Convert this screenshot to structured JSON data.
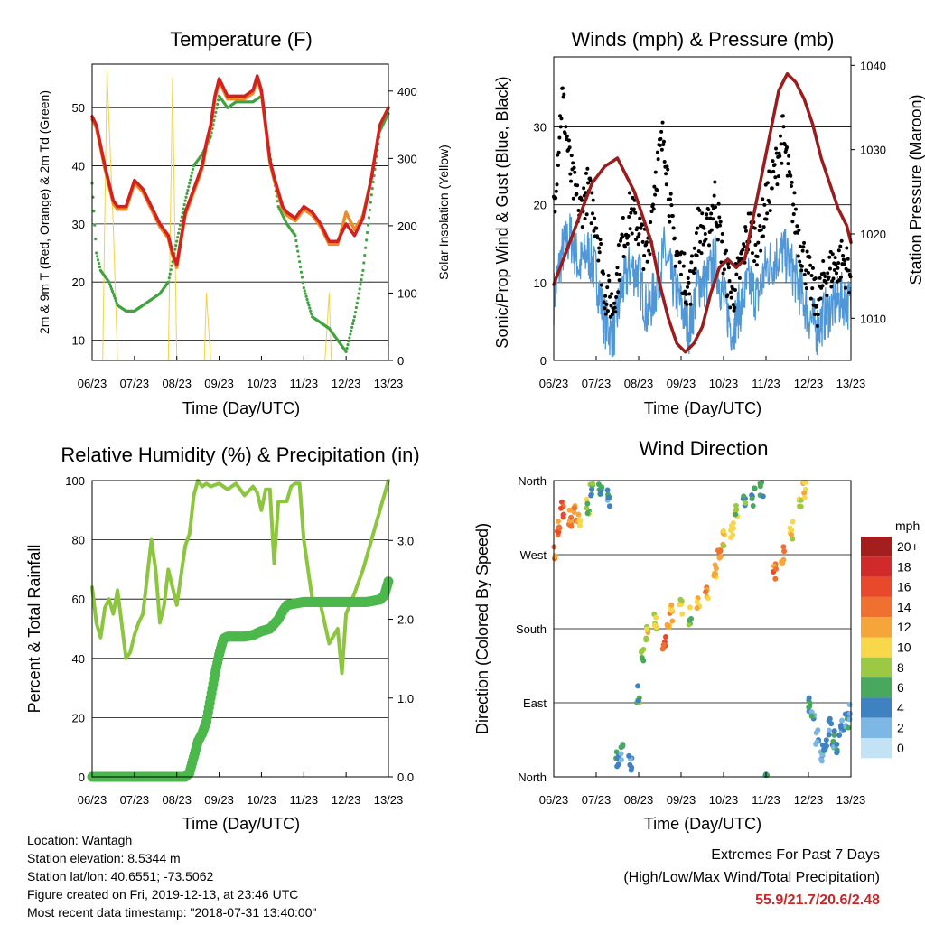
{
  "x_ticks": [
    "06/23",
    "07/23",
    "08/23",
    "09/23",
    "10/23",
    "11/23",
    "12/23",
    "13/23"
  ],
  "colors": {
    "t2m": "#d42020",
    "t9m": "#f08a24",
    "td": "#3fa33f",
    "solar": "#f5d142",
    "wind": "#4f97d6",
    "gust": "#000000",
    "pressure": "#9b1c1c",
    "rh": "#8cc63f",
    "rain": "#4cb84c"
  },
  "chart_data": [
    {
      "type": "line",
      "title": "Temperature (F)",
      "xlabel": "Time (Day/UTC)",
      "ylabel": "2m & 9m T (Red, Orange) & 2m Td (Green)",
      "ylabel_right": "Solar Insolation (Yellow)",
      "ylim": [
        6.5,
        57.5
      ],
      "yticks": [
        10,
        20,
        30,
        40,
        50
      ],
      "ylim_right": [
        0,
        440
      ],
      "yticks_right": [
        0,
        100,
        200,
        300,
        400
      ],
      "xlim": [
        6,
        13
      ],
      "grid": "horizontal",
      "series": [
        {
          "key": "t2m",
          "x": [
            6.0,
            6.1,
            6.3,
            6.5,
            6.6,
            6.8,
            7.0,
            7.2,
            7.4,
            7.6,
            7.8,
            7.9,
            8.0,
            8.2,
            8.4,
            8.6,
            8.7,
            8.8,
            8.9,
            9.0,
            9.2,
            9.4,
            9.6,
            9.8,
            9.9,
            10.0,
            10.2,
            10.3,
            10.5,
            10.6,
            10.8,
            11.0,
            11.2,
            11.4,
            11.6,
            11.8,
            12.0,
            12.2,
            12.4,
            12.6,
            12.8,
            13.0
          ],
          "y": [
            48.5,
            47,
            40,
            34,
            33,
            33,
            37.5,
            36,
            33,
            30,
            28,
            25,
            23,
            32,
            36,
            40,
            44,
            47,
            52,
            55,
            52,
            52,
            52,
            53,
            55.5,
            53,
            41,
            38,
            33,
            32,
            31,
            33,
            32,
            30,
            27,
            27,
            30,
            28,
            31,
            38,
            47,
            50
          ]
        },
        {
          "key": "t9m",
          "x": [
            6.0,
            6.1,
            6.3,
            6.5,
            6.6,
            6.8,
            7.0,
            7.2,
            7.4,
            7.6,
            7.8,
            7.9,
            8.0,
            8.2,
            8.4,
            8.6,
            8.7,
            8.8,
            8.9,
            9.0,
            9.2,
            9.4,
            9.6,
            9.8,
            9.9,
            10.0,
            10.2,
            10.3,
            10.5,
            10.6,
            10.8,
            11.0,
            11.2,
            11.4,
            11.6,
            11.8,
            12.0,
            12.2,
            12.4,
            12.6,
            12.8,
            13.0
          ],
          "y": [
            48,
            46.5,
            39.5,
            33.5,
            32.5,
            32.5,
            37,
            35.5,
            32.5,
            29.5,
            27.5,
            24.5,
            22.5,
            31.5,
            35.5,
            39.5,
            43.5,
            46.5,
            51.5,
            54.5,
            51.5,
            51.5,
            51.5,
            52.5,
            55,
            52.5,
            40.5,
            37.5,
            32.5,
            31.5,
            30.5,
            32.5,
            31.5,
            29.5,
            26.5,
            26.5,
            32,
            29,
            31.5,
            38,
            47,
            50
          ]
        },
        {
          "key": "td",
          "x": [
            6.0,
            6.1,
            6.2,
            6.4,
            6.6,
            6.8,
            7.0,
            7.2,
            7.4,
            7.6,
            7.8,
            8.0,
            8.2,
            8.4,
            8.6,
            8.8,
            9.0,
            9.2,
            9.4,
            9.6,
            9.8,
            10.0,
            10.2,
            10.4,
            10.6,
            10.8,
            11.0,
            11.2,
            11.4,
            11.6,
            11.8,
            12.0,
            12.2,
            12.4,
            12.6,
            12.8,
            13.0
          ],
          "y": [
            37,
            25,
            22,
            20,
            16,
            15,
            15,
            16,
            17,
            18,
            20,
            27,
            34,
            40,
            42,
            45,
            52,
            50,
            51,
            51,
            51,
            52,
            42,
            33,
            30,
            28,
            19,
            14,
            13,
            12,
            10,
            8,
            14,
            22,
            35,
            46,
            49
          ]
        },
        {
          "key": "solar",
          "x": [
            6.0,
            6.1,
            6.25,
            6.35,
            6.5,
            6.6,
            6.75,
            6.9,
            7.0,
            7.1,
            7.2,
            7.28,
            7.4,
            7.5,
            7.6,
            7.7,
            7.8,
            7.9,
            8.0,
            8.5,
            8.6,
            8.65,
            8.7,
            8.8,
            9.0,
            9.1,
            9.2,
            9.3,
            9.4,
            9.5,
            9.6,
            9.7,
            9.8,
            9.9,
            10.0,
            10.5,
            10.6,
            10.7,
            10.8,
            10.9,
            11.0,
            11.5,
            11.6,
            11.65,
            11.7,
            11.8,
            11.9,
            12.0,
            12.5,
            12.6,
            12.7,
            12.8,
            12.9,
            13.0
          ],
          "y": [
            0,
            0,
            0,
            430,
            200,
            0,
            0,
            0,
            0,
            0,
            0,
            0,
            0,
            0,
            0,
            0,
            0,
            420,
            0,
            0,
            0,
            0,
            100,
            0,
            0,
            0,
            0,
            0,
            0,
            0,
            0,
            0,
            0,
            0,
            0,
            0,
            0,
            0,
            0,
            0,
            0,
            0,
            100,
            0,
            0,
            0,
            0,
            0,
            0,
            0,
            0,
            0,
            0,
            0
          ]
        }
      ]
    },
    {
      "type": "scatter",
      "title": "Winds (mph) & Pressure (mb)",
      "xlabel": "Time (Day/UTC)",
      "ylabel": "Sonic/Prop Wind & Gust (Blue, Black)",
      "ylabel_right": "Station Pressure (Maroon)",
      "ylim": [
        0,
        39
      ],
      "yticks": [
        0,
        10,
        20,
        30
      ],
      "ylim_right": [
        1005,
        1041
      ],
      "yticks_right": [
        1010,
        1020,
        1030,
        1040
      ],
      "xlim": [
        6,
        13
      ],
      "grid": "horizontal",
      "series": [
        {
          "key": "wind",
          "x": [
            6.0,
            6.2,
            6.4,
            6.6,
            6.8,
            7.0,
            7.2,
            7.4,
            7.6,
            7.8,
            8.0,
            8.2,
            8.4,
            8.6,
            8.8,
            9.0,
            9.2,
            9.4,
            9.6,
            9.8,
            10.0,
            10.2,
            10.4,
            10.6,
            10.8,
            11.0,
            11.2,
            11.4,
            11.6,
            11.8,
            12.0,
            12.2,
            12.4,
            12.6,
            12.8,
            13.0
          ],
          "y": [
            8,
            14,
            16,
            12,
            14,
            11,
            5,
            3,
            9,
            12,
            11,
            6,
            9,
            14,
            10,
            7,
            4,
            10,
            10,
            13,
            8,
            4,
            7,
            10,
            8,
            12,
            13,
            14,
            12,
            9,
            6,
            4,
            6,
            7,
            8,
            7
          ]
        },
        {
          "key": "gust",
          "x": [
            6.0,
            6.2,
            6.4,
            6.6,
            6.8,
            7.0,
            7.2,
            7.4,
            7.6,
            7.8,
            8.0,
            8.2,
            8.4,
            8.6,
            8.8,
            9.0,
            9.2,
            9.4,
            9.6,
            9.8,
            10.0,
            10.2,
            10.4,
            10.6,
            10.8,
            11.0,
            11.2,
            11.4,
            11.6,
            11.8,
            12.0,
            12.2,
            12.4,
            12.6,
            12.8,
            13.0
          ],
          "y": [
            20,
            34,
            24,
            19,
            22,
            18,
            9,
            7,
            15,
            19,
            17,
            13,
            24,
            29,
            16,
            12,
            9,
            17,
            16,
            21,
            13,
            8,
            12,
            17,
            15,
            20,
            24,
            29,
            21,
            15,
            11,
            7,
            11,
            12,
            13,
            11
          ]
        },
        {
          "key": "pressure",
          "x": [
            6.0,
            6.3,
            6.6,
            6.9,
            7.2,
            7.5,
            7.7,
            7.9,
            8.1,
            8.3,
            8.5,
            8.7,
            8.9,
            9.1,
            9.3,
            9.5,
            9.7,
            9.9,
            10.1,
            10.3,
            10.5,
            10.7,
            10.9,
            11.1,
            11.3,
            11.5,
            11.7,
            11.9,
            12.1,
            12.3,
            12.5,
            12.7,
            12.9,
            13.0
          ],
          "y": [
            1014,
            1018,
            1022,
            1026,
            1028,
            1029,
            1027,
            1025,
            1022,
            1019,
            1014,
            1010,
            1007,
            1006,
            1007,
            1009,
            1013,
            1016,
            1017,
            1016,
            1017,
            1022,
            1027,
            1032,
            1037,
            1039,
            1038,
            1036,
            1033,
            1029,
            1026,
            1023,
            1021,
            1019
          ]
        }
      ]
    },
    {
      "type": "line",
      "title": "Relative Humidity (%) & Precipitation (in)",
      "xlabel": "Time (Day/UTC)",
      "ylabel": "Percent & Total Rainfall",
      "ylim": [
        0,
        100
      ],
      "yticks": [
        0,
        20,
        40,
        60,
        80,
        100
      ],
      "ylim_right": [
        0,
        3.76
      ],
      "yticks_right": [
        "0.0",
        "1.0",
        "2.0",
        "3.0"
      ],
      "xlim": [
        6,
        13
      ],
      "grid": "horizontal",
      "series": [
        {
          "key": "rh",
          "x": [
            6.0,
            6.1,
            6.2,
            6.3,
            6.4,
            6.5,
            6.6,
            6.8,
            6.9,
            7.0,
            7.1,
            7.2,
            7.4,
            7.5,
            7.6,
            7.7,
            7.8,
            7.9,
            8.0,
            8.1,
            8.2,
            8.3,
            8.4,
            8.5,
            8.6,
            8.7,
            8.8,
            9.0,
            9.2,
            9.4,
            9.6,
            9.8,
            9.9,
            10.0,
            10.1,
            10.2,
            10.3,
            10.4,
            10.6,
            10.7,
            10.8,
            10.9,
            11.0,
            11.2,
            11.4,
            11.6,
            11.8,
            11.9,
            12.0,
            12.2,
            12.4,
            12.6,
            12.8,
            13.0
          ],
          "y": [
            64,
            52,
            47,
            57,
            60,
            55,
            63,
            40,
            42,
            48,
            52,
            55,
            80,
            70,
            52,
            58,
            70,
            64,
            58,
            68,
            78,
            82,
            95,
            100,
            98,
            99,
            98,
            99,
            97,
            99,
            95,
            98,
            96,
            90,
            97,
            97,
            72,
            93,
            93,
            98,
            99,
            99,
            80,
            60,
            58,
            45,
            50,
            35,
            55,
            62,
            70,
            80,
            90,
            100
          ]
        },
        {
          "key": "rain",
          "x": [
            6.0,
            6.5,
            7.0,
            7.5,
            8.0,
            8.2,
            8.3,
            8.4,
            8.5,
            8.6,
            8.7,
            8.8,
            8.9,
            9.0,
            9.1,
            9.2,
            9.3,
            9.4,
            9.5,
            9.6,
            9.8,
            10.0,
            10.2,
            10.4,
            10.5,
            10.6,
            10.8,
            11.0,
            11.5,
            12.0,
            12.5,
            12.8,
            12.9,
            13.0
          ],
          "y": [
            0,
            0,
            0,
            0,
            0,
            0,
            0.05,
            0.25,
            0.45,
            0.55,
            0.7,
            1.0,
            1.3,
            1.55,
            1.75,
            1.78,
            1.78,
            1.78,
            1.78,
            1.78,
            1.8,
            1.85,
            1.88,
            2.0,
            2.1,
            2.18,
            2.2,
            2.22,
            2.22,
            2.22,
            2.22,
            2.25,
            2.3,
            2.48
          ]
        }
      ]
    },
    {
      "type": "scatter",
      "title": "Wind Direction",
      "xlabel": "Time (Day/UTC)",
      "ylabel": "Direction (Colored By Speed)",
      "yticks": [
        "North",
        "East",
        "South",
        "West",
        "North"
      ],
      "ylim": [
        0,
        360
      ],
      "xlim": [
        6,
        13
      ],
      "grid": "horizontal",
      "legend": {
        "title": "mph",
        "labels": [
          "20+",
          "18",
          "16",
          "14",
          "12",
          "10",
          "8",
          "6",
          "4",
          "2",
          "0"
        ],
        "colors": [
          "#a51e1e",
          "#d12a2a",
          "#e8492a",
          "#f0712f",
          "#f6a53a",
          "#f8d74a",
          "#9bc944",
          "#48a85e",
          "#3f82c2",
          "#7cb7e5",
          "#c3e3f5"
        ]
      },
      "x": [
        6.0,
        6.1,
        6.2,
        6.4,
        6.5,
        6.6,
        6.8,
        6.9,
        7.1,
        7.3,
        7.5,
        7.6,
        7.8,
        8.0,
        8.1,
        8.2,
        8.4,
        8.6,
        8.7,
        8.8,
        9.0,
        9.2,
        9.4,
        9.6,
        9.8,
        9.9,
        10.0,
        10.2,
        10.3,
        10.5,
        10.7,
        10.9,
        11.0,
        11.2,
        11.4,
        11.6,
        11.8,
        11.9,
        12.0,
        12.1,
        12.2,
        12.3,
        12.4,
        12.5,
        12.6,
        12.7,
        12.8,
        12.9,
        13.0
      ],
      "dir": [
        270,
        300,
        325,
        315,
        320,
        310,
        330,
        345,
        350,
        340,
        20,
        30,
        15,
        100,
        150,
        175,
        190,
        160,
        190,
        200,
        205,
        195,
        210,
        220,
        250,
        270,
        290,
        300,
        320,
        330,
        340,
        350,
        0,
        250,
        270,
        300,
        330,
        350,
        90,
        70,
        50,
        30,
        40,
        60,
        45,
        40,
        60,
        70,
        80
      ],
      "speed": [
        12,
        14,
        15,
        13,
        12,
        10,
        8,
        6,
        5,
        4,
        5,
        4,
        3,
        6,
        8,
        10,
        9,
        15,
        12,
        10,
        9,
        8,
        10,
        12,
        11,
        13,
        10,
        9,
        8,
        6,
        5,
        4,
        5,
        14,
        12,
        10,
        9,
        10,
        5,
        4,
        3,
        3,
        4,
        3,
        4,
        5,
        3,
        4,
        3
      ]
    }
  ],
  "info": {
    "location": "Location: Wantagh",
    "elevation": "Station elevation: 8.5344 m",
    "latlon": "Station lat/lon: 40.6551; -73.5062",
    "created": "Figure created on Fri, 2019-12-13, at 23:46 UTC",
    "recent": "Most recent data timestamp: \"2018-07-31 13:40:00\""
  },
  "extremes": {
    "title": "Extremes For Past 7 Days",
    "subtitle": "(High/Low/Max Wind/Total Precipitation)",
    "values": "55.9/21.7/20.6/2.48"
  }
}
